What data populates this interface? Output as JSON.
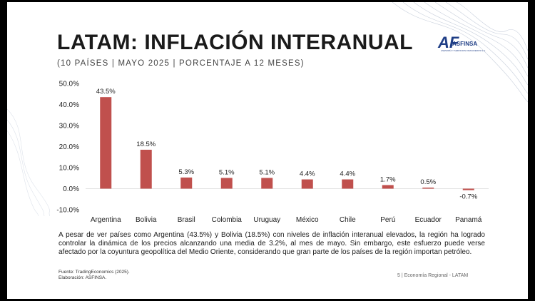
{
  "header": {
    "title": "LATAM: INFLACIÓN INTERANUAL",
    "subtitle": "(10 PAÍSES | MAYO 2025 | PORCENTAJE A 12 MESES)"
  },
  "logo": {
    "mark": "AF",
    "name": "ASFINSA",
    "tagline": "ASESORÍA Y SERVICIOS FINANCIEROS S.A."
  },
  "chart_data": {
    "type": "bar",
    "categories": [
      "Argentina",
      "Bolivia",
      "Brasil",
      "Colombia",
      "Uruguay",
      "México",
      "Chile",
      "Perú",
      "Ecuador",
      "Panamá"
    ],
    "values": [
      43.5,
      18.5,
      5.3,
      5.1,
      5.1,
      4.4,
      4.4,
      1.7,
      0.5,
      -0.7
    ],
    "data_labels": [
      "43.5%",
      "18.5%",
      "5.3%",
      "5.1%",
      "5.1%",
      "4.4%",
      "4.4%",
      "1.7%",
      "0.5%",
      "-0.7%"
    ],
    "y_ticks": [
      "-10.0%",
      "0.0%",
      "10.0%",
      "20.0%",
      "30.0%",
      "40.0%",
      "50.0%"
    ],
    "y_tick_values": [
      -10,
      0,
      10,
      20,
      30,
      40,
      50
    ],
    "ylim": [
      -10,
      50
    ],
    "title": "",
    "xlabel": "",
    "ylabel": "",
    "bar_color": "#c0504d",
    "grid": false
  },
  "body": {
    "paragraph": "A pesar de ver países como Argentina (43.5%) y Bolivia (18.5%) con niveles de inflación interanual elevados, la región ha logrado controlar la dinámica de los precios alcanzando una media de 3.2%, al mes de mayo. Sin embargo, este esfuerzo puede verse afectado por la coyuntura geopolítica del Medio Oriente, considerando que gran parte de los países de la región importan petróleo."
  },
  "footer": {
    "source": "Fuente: TradingEconomics (2025).",
    "elaboration": "Elaboración: ASFINSA.",
    "page": "5 | Economía Regional - LATAM"
  }
}
